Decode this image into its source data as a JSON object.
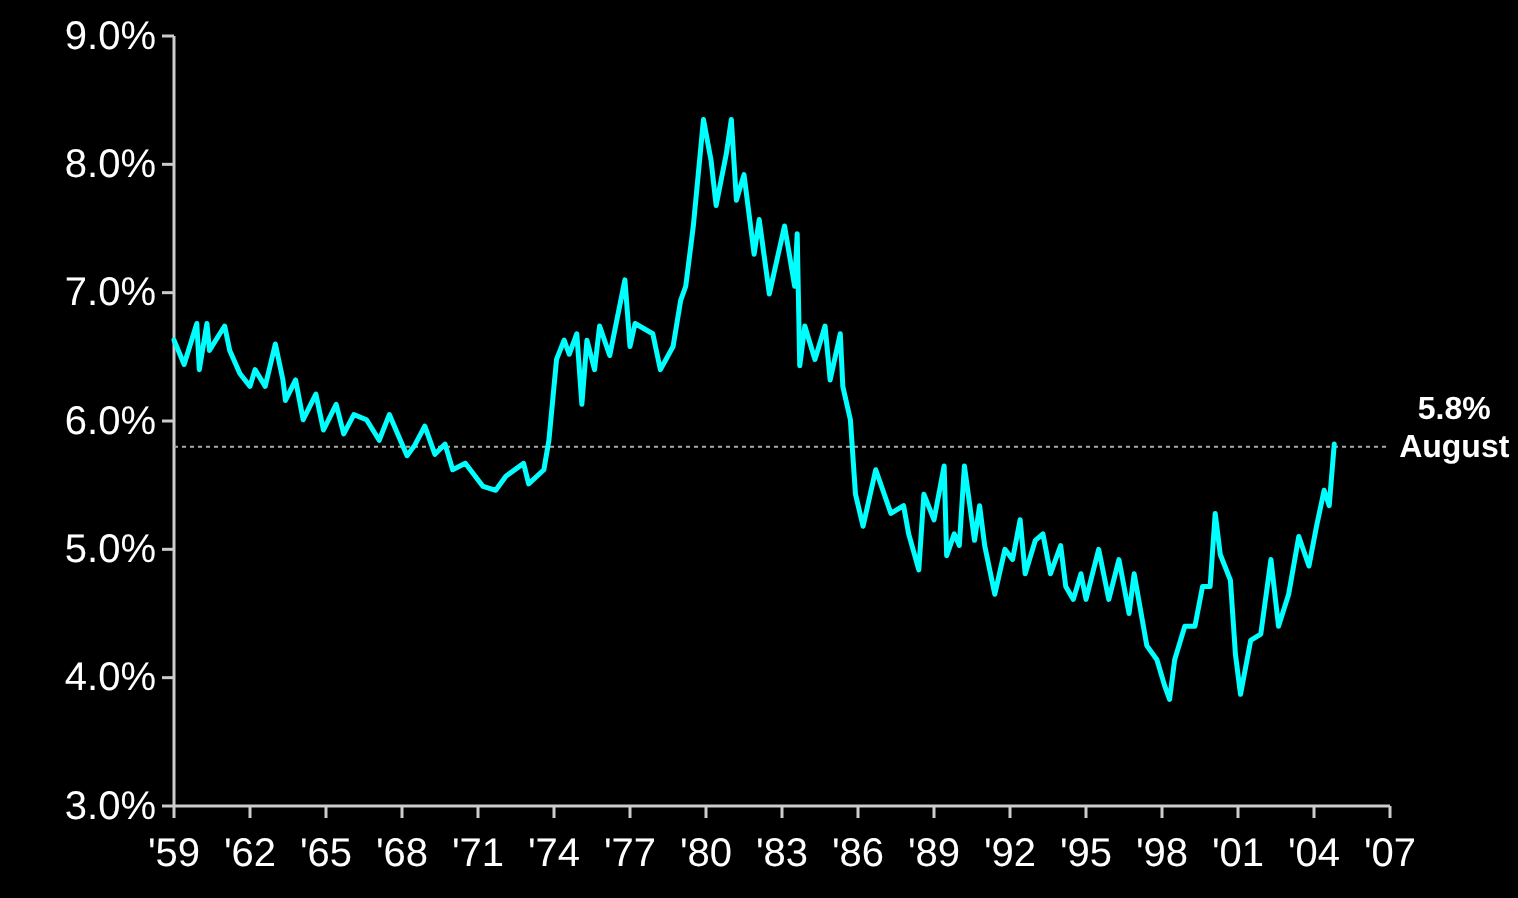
{
  "chart_data": {
    "type": "line",
    "xlim": [
      1959,
      2007
    ],
    "xticks": [
      {
        "value": 1959,
        "label": "'59"
      },
      {
        "value": 1962,
        "label": "'62"
      },
      {
        "value": 1965,
        "label": "'65"
      },
      {
        "value": 1968,
        "label": "'68"
      },
      {
        "value": 1971,
        "label": "'71"
      },
      {
        "value": 1974,
        "label": "'74"
      },
      {
        "value": 1977,
        "label": "'77"
      },
      {
        "value": 1980,
        "label": "'80"
      },
      {
        "value": 1983,
        "label": "'83"
      },
      {
        "value": 1986,
        "label": "'86"
      },
      {
        "value": 1989,
        "label": "'89"
      },
      {
        "value": 1992,
        "label": "'92"
      },
      {
        "value": 1995,
        "label": "'95"
      },
      {
        "value": 1998,
        "label": "'98"
      },
      {
        "value": 2001,
        "label": "'01"
      },
      {
        "value": 2004,
        "label": "'04"
      },
      {
        "value": 2007,
        "label": "'07"
      }
    ],
    "ylim": [
      3,
      9
    ],
    "yticks": [
      {
        "value": 3,
        "label": "3.0%"
      },
      {
        "value": 4,
        "label": "4.0%"
      },
      {
        "value": 5,
        "label": "5.0%"
      },
      {
        "value": 6,
        "label": "6.0%"
      },
      {
        "value": 7,
        "label": "7.0%"
      },
      {
        "value": 8,
        "label": "8.0%"
      },
      {
        "value": 9,
        "label": "9.0%"
      }
    ],
    "grid": false,
    "marker": "none",
    "line_style": "solid",
    "series": [
      {
        "color": "#00ffff",
        "x": [
          1959.0,
          1959.4,
          1959.9,
          1960.0,
          1960.3,
          1960.4,
          1961.0,
          1961.2,
          1961.6,
          1962.0,
          1962.2,
          1962.6,
          1963.0,
          1963.3,
          1963.4,
          1963.8,
          1964.1,
          1964.6,
          1964.9,
          1965.4,
          1965.7,
          1966.1,
          1966.6,
          1967.1,
          1967.5,
          1968.2,
          1968.5,
          1968.9,
          1969.3,
          1969.7,
          1970.0,
          1970.5,
          1971.2,
          1971.7,
          1972.1,
          1972.8,
          1973.0,
          1973.6,
          1973.8,
          1974.1,
          1974.4,
          1974.6,
          1974.9,
          1975.1,
          1975.3,
          1975.6,
          1975.8,
          1976.2,
          1976.8,
          1977.0,
          1977.2,
          1977.9,
          1978.2,
          1978.7,
          1979.0,
          1979.2,
          1979.5,
          1979.9,
          1980.2,
          1980.4,
          1980.8,
          1981.0,
          1981.2,
          1981.5,
          1981.9,
          1982.1,
          1982.5,
          1983.1,
          1983.5,
          1983.6,
          1983.7,
          1983.9,
          1984.3,
          1984.7,
          1984.9,
          1985.3,
          1985.4,
          1985.7,
          1985.9,
          1986.2,
          1986.7,
          1987.3,
          1987.8,
          1988.0,
          1988.4,
          1988.6,
          1989.0,
          1989.4,
          1989.5,
          1989.8,
          1990.0,
          1990.2,
          1990.6,
          1990.8,
          1991.0,
          1991.4,
          1991.8,
          1992.1,
          1992.4,
          1992.6,
          1993.0,
          1993.3,
          1993.6,
          1994.0,
          1994.2,
          1994.5,
          1994.8,
          1995.0,
          1995.5,
          1995.9,
          1996.3,
          1996.7,
          1996.9,
          1997.4,
          1997.8,
          1998.1,
          1998.3,
          1998.5,
          1998.9,
          1999.3,
          1999.6,
          1999.9,
          2000.1,
          2000.3,
          2000.7,
          2000.9,
          2001.1,
          2001.5,
          2001.9,
          2002.3,
          2002.6,
          2003.0,
          2003.4,
          2003.8,
          2004.1,
          2004.4,
          2004.6,
          2004.8
        ],
        "values": [
          6.63,
          6.44,
          6.76,
          6.4,
          6.76,
          6.55,
          6.74,
          6.55,
          6.37,
          6.27,
          6.4,
          6.27,
          6.6,
          6.32,
          6.16,
          6.32,
          6.01,
          6.21,
          5.93,
          6.13,
          5.9,
          6.05,
          6.01,
          5.85,
          6.05,
          5.73,
          5.81,
          5.96,
          5.74,
          5.82,
          5.62,
          5.67,
          5.49,
          5.46,
          5.57,
          5.67,
          5.51,
          5.62,
          5.85,
          6.48,
          6.63,
          6.52,
          6.68,
          6.13,
          6.63,
          6.4,
          6.74,
          6.51,
          7.1,
          6.58,
          6.76,
          6.68,
          6.4,
          6.58,
          6.94,
          7.05,
          7.52,
          8.35,
          8.03,
          7.68,
          8.08,
          8.35,
          7.72,
          7.92,
          7.3,
          7.57,
          6.99,
          7.52,
          7.05,
          7.46,
          6.43,
          6.74,
          6.48,
          6.74,
          6.32,
          6.68,
          6.27,
          6.01,
          5.43,
          5.18,
          5.62,
          5.28,
          5.34,
          5.12,
          4.84,
          5.43,
          5.23,
          5.65,
          4.95,
          5.12,
          5.03,
          5.65,
          5.07,
          5.34,
          5.03,
          4.65,
          5.0,
          4.92,
          5.23,
          4.81,
          5.07,
          5.12,
          4.81,
          5.03,
          4.71,
          4.61,
          4.81,
          4.61,
          5.0,
          4.61,
          4.92,
          4.5,
          4.81,
          4.25,
          4.14,
          3.94,
          3.83,
          4.14,
          4.4,
          4.4,
          4.71,
          4.71,
          5.28,
          4.96,
          4.76,
          4.18,
          3.87,
          4.29,
          4.34,
          4.92,
          4.4,
          4.65,
          5.1,
          4.87,
          5.18,
          5.46,
          5.34,
          5.82
        ]
      }
    ],
    "ref_lines": [
      {
        "axis": "y",
        "value": 5.8,
        "color": "#aaaaaa",
        "line_style": "dotted"
      }
    ],
    "annotations": [
      {
        "text": "5.8%\nAugust",
        "x": 2004.8,
        "y": 5.8
      }
    ]
  }
}
